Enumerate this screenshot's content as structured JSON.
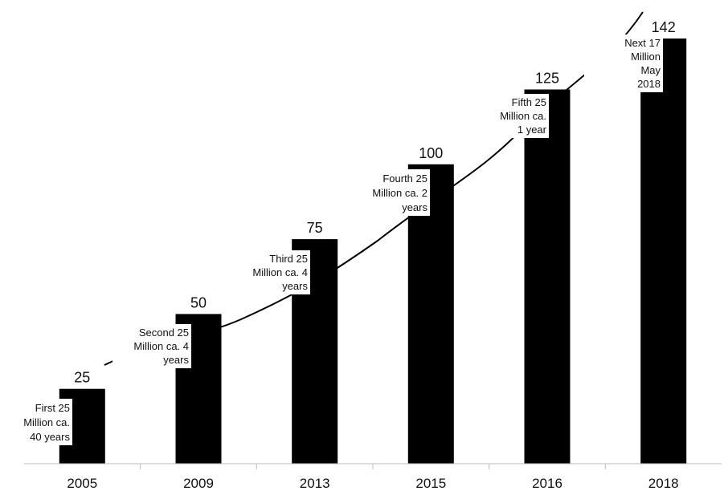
{
  "chart_data": {
    "type": "bar",
    "title": "",
    "xlabel": "",
    "ylabel": "",
    "categories": [
      "2005",
      "2009",
      "2013",
      "2015",
      "2016",
      "2018"
    ],
    "values": [
      25,
      50,
      75,
      100,
      125,
      142
    ],
    "value_labels": [
      "25",
      "50",
      "75",
      "100",
      "125",
      "142"
    ],
    "ylim": [
      0,
      150
    ],
    "grid": false,
    "legend": "none",
    "bar_color": "#000000",
    "trend_line": true,
    "annotations": [
      {
        "category": "2005",
        "lines": [
          "First  25",
          "Million ca.",
          "40 years"
        ]
      },
      {
        "category": "2009",
        "lines": [
          "Second  25",
          "Million ca. 4",
          "years"
        ]
      },
      {
        "category": "2013",
        "lines": [
          "Third 25",
          "Million ca. 4",
          "years"
        ]
      },
      {
        "category": "2015",
        "lines": [
          "Fourth  25",
          "Million ca. 2",
          "years"
        ]
      },
      {
        "category": "2016",
        "lines": [
          "Fifth  25",
          "Million ca.",
          "1 year"
        ]
      },
      {
        "category": "2018",
        "lines": [
          "Next 17",
          "Million",
          "May",
          "2018"
        ]
      }
    ]
  }
}
